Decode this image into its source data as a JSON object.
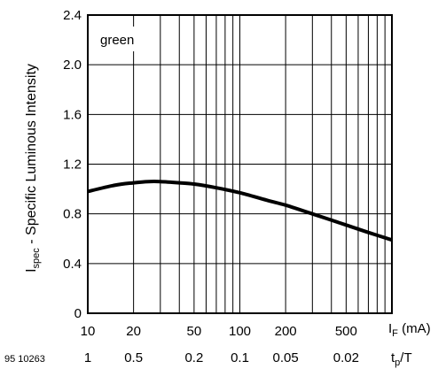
{
  "chart_data": {
    "type": "line",
    "x_scale": "log",
    "xlim": [
      10,
      1000
    ],
    "ylim": [
      0,
      2.4
    ],
    "grid": true,
    "legend_position": "top-left",
    "ylabel": {
      "main": "I",
      "sub": "spec",
      "rest": " - Specific Luminous Intensity"
    },
    "xlabel_if": {
      "main": "I",
      "sub": "F",
      "rest": " (mA)"
    },
    "xlabel_tpt": {
      "main": "t",
      "sub": "p",
      "rest": "/T"
    },
    "y_ticks": [
      {
        "value": 0,
        "label": "0"
      },
      {
        "value": 0.4,
        "label": "0.4"
      },
      {
        "value": 0.8,
        "label": "0.8"
      },
      {
        "value": 1.2,
        "label": "1.2"
      },
      {
        "value": 1.6,
        "label": "1.6"
      },
      {
        "value": 2.0,
        "label": "2.0"
      },
      {
        "value": 2.4,
        "label": "2.4"
      }
    ],
    "x_ticks": [
      {
        "value": 10,
        "label": "10",
        "tpt": "1"
      },
      {
        "value": 20,
        "label": "20",
        "tpt": "0.5"
      },
      {
        "value": 50,
        "label": "50",
        "tpt": "0.2"
      },
      {
        "value": 100,
        "label": "100",
        "tpt": "0.1"
      },
      {
        "value": 200,
        "label": "200",
        "tpt": "0.05"
      },
      {
        "value": 500,
        "label": "500",
        "tpt": "0.02"
      }
    ],
    "x_grid": [
      10,
      20,
      30,
      40,
      50,
      60,
      70,
      80,
      90,
      100,
      200,
      300,
      400,
      500,
      600,
      700,
      800,
      900,
      1000
    ],
    "y_grid": [
      0,
      0.4,
      0.8,
      1.2,
      1.6,
      2.0,
      2.4
    ],
    "series": [
      {
        "name": "green",
        "x": [
          10,
          15,
          20,
          25,
          30,
          40,
          50,
          70,
          100,
          150,
          200,
          300,
          500,
          700,
          1000
        ],
        "y": [
          0.98,
          1.03,
          1.05,
          1.06,
          1.06,
          1.05,
          1.04,
          1.01,
          0.97,
          0.91,
          0.87,
          0.8,
          0.71,
          0.65,
          0.59
        ]
      }
    ],
    "figure_id": "95 10263"
  }
}
